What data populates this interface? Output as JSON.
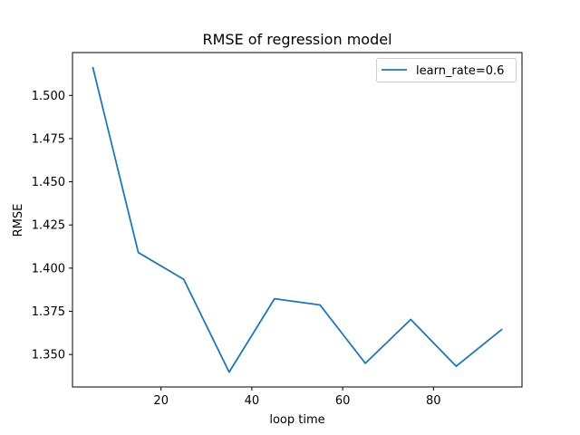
{
  "chart_data": {
    "type": "line",
    "title": "RMSE of regression model",
    "xlabel": "loop time",
    "ylabel": "RMSE",
    "xlim": [
      0.5,
      99.5
    ],
    "ylim": [
      1.3312,
      1.5248
    ],
    "x_ticks": [
      20,
      40,
      60,
      80
    ],
    "y_ticks": [
      1.35,
      1.375,
      1.4,
      1.425,
      1.45,
      1.475,
      1.5
    ],
    "y_tick_labels": [
      "1.350",
      "1.375",
      "1.400",
      "1.425",
      "1.450",
      "1.475",
      "1.500"
    ],
    "grid": false,
    "legend": "top-right",
    "series": [
      {
        "name": "learn_rate=0.6",
        "color": "#1f77b4",
        "x": [
          5,
          15,
          25,
          35,
          45,
          55,
          65,
          75,
          85,
          95
        ],
        "y": [
          1.516,
          1.409,
          1.3935,
          1.3398,
          1.3823,
          1.3787,
          1.3449,
          1.3703,
          1.3432,
          1.3644
        ]
      }
    ]
  }
}
